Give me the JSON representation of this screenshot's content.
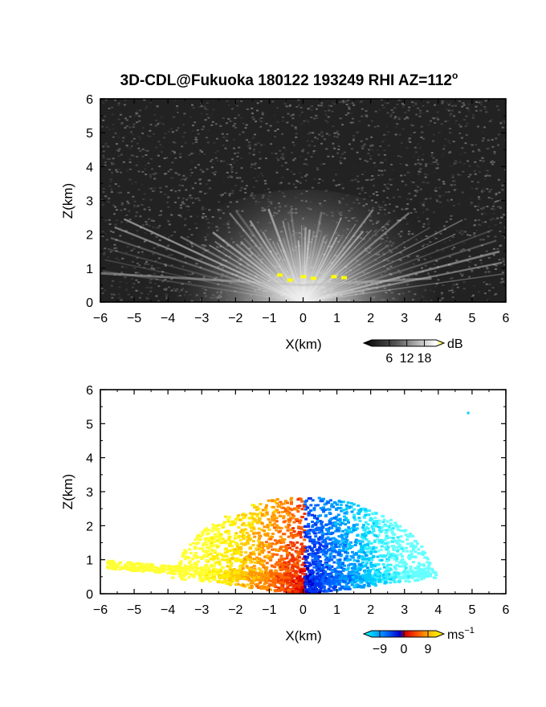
{
  "title": "3D-CDL@Fukuoka 180122 193249 RHI AZ=112",
  "title_sup": "o",
  "chart_data": [
    {
      "type": "heatmap",
      "field": "reflectivity",
      "xlabel": "X(km)",
      "ylabel": "Z(km)",
      "xlim": [
        -6,
        6
      ],
      "ylim": [
        0,
        6
      ],
      "xticks": [
        -6,
        -5,
        -4,
        -3,
        -2,
        -1,
        0,
        1,
        2,
        3,
        4,
        5,
        6
      ],
      "yticks": [
        0,
        1,
        2,
        3,
        4,
        5,
        6
      ],
      "background": "#222222",
      "fan_origin": [
        0,
        0
      ],
      "fan_max_height_km": 2.8,
      "yellow_spots": [
        [
          -0.7,
          0.8
        ],
        [
          -0.4,
          0.65
        ],
        [
          0.0,
          0.75
        ],
        [
          0.3,
          0.7
        ],
        [
          0.9,
          0.75
        ],
        [
          1.2,
          0.72
        ]
      ],
      "colorbar": {
        "label": "dB",
        "ticks": [
          6,
          12,
          18
        ],
        "range": [
          0,
          22
        ],
        "colors": [
          "#000000",
          "#555555",
          "#aaaaaa",
          "#ffffff",
          "#ffff00"
        ]
      }
    },
    {
      "type": "heatmap",
      "field": "doppler_velocity",
      "xlabel": "X(km)",
      "ylabel": "Z(km)",
      "xlim": [
        -6,
        6
      ],
      "ylim": [
        0,
        6
      ],
      "xticks": [
        -6,
        -5,
        -4,
        -3,
        -2,
        -1,
        0,
        1,
        2,
        3,
        4,
        5,
        6
      ],
      "yticks": [
        0,
        1,
        2,
        3,
        4,
        5,
        6
      ],
      "outlier": [
        4.85,
        5.35
      ],
      "colorbar": {
        "label": "ms",
        "label_sup": "−1",
        "ticks": [
          "−9",
          "0",
          "9"
        ],
        "tick_values": [
          -9,
          0,
          9
        ],
        "range": [
          -12,
          12
        ],
        "colors": [
          "#00ffff",
          "#0080ff",
          "#0000cc",
          "#dd0000",
          "#ff6600",
          "#ffcc00",
          "#ffff00"
        ]
      }
    }
  ]
}
